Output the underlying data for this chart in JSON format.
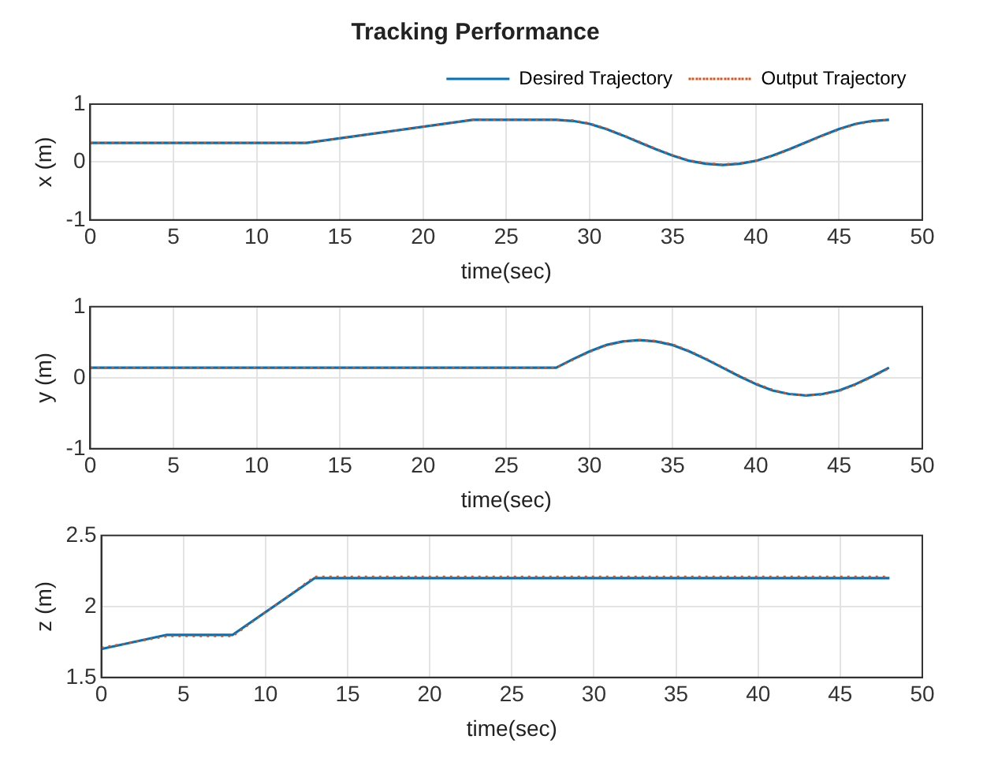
{
  "chart_data": [
    {
      "type": "line",
      "title": "Tracking Performance",
      "xlabel": "time(sec)",
      "ylabel": "x (m)",
      "xlim": [
        0,
        50
      ],
      "xticks": [
        0,
        5,
        10,
        15,
        20,
        25,
        30,
        35,
        40,
        45,
        50
      ],
      "ylim": [
        -1,
        1
      ],
      "yticks": [
        -1,
        0,
        1
      ],
      "grid": true,
      "legend": "top right",
      "marker": "none",
      "series": [
        {
          "name": "Desired Trajectory",
          "color": "#0072bd",
          "line_style": "solid",
          "x": [
            0,
            13,
            23,
            28,
            29,
            30,
            31,
            32,
            33,
            34,
            35,
            36,
            37,
            38,
            39,
            40,
            41,
            42,
            43,
            44,
            45,
            46,
            47,
            48
          ],
          "values": [
            0.33,
            0.33,
            0.73,
            0.73,
            0.71,
            0.66,
            0.57,
            0.46,
            0.34,
            0.22,
            0.11,
            0.02,
            -0.03,
            -0.05,
            -0.03,
            0.02,
            0.11,
            0.22,
            0.34,
            0.46,
            0.57,
            0.66,
            0.71,
            0.73
          ]
        },
        {
          "name": "Output Trajectory",
          "color": "#d95319",
          "line_style": "dotted",
          "x": [
            0,
            13,
            23,
            28,
            29,
            30,
            31,
            32,
            33,
            34,
            35,
            36,
            37,
            38,
            39,
            40,
            41,
            42,
            43,
            44,
            45,
            46,
            47,
            48
          ],
          "values": [
            0.33,
            0.33,
            0.73,
            0.73,
            0.72,
            0.67,
            0.58,
            0.47,
            0.35,
            0.23,
            0.12,
            0.03,
            -0.02,
            -0.04,
            -0.02,
            0.02,
            0.1,
            0.21,
            0.33,
            0.45,
            0.56,
            0.65,
            0.7,
            0.73
          ]
        }
      ]
    },
    {
      "type": "line",
      "xlabel": "time(sec)",
      "ylabel": "y (m)",
      "xlim": [
        0,
        50
      ],
      "xticks": [
        0,
        5,
        10,
        15,
        20,
        25,
        30,
        35,
        40,
        45,
        50
      ],
      "ylim": [
        -1,
        1
      ],
      "yticks": [
        -1,
        0,
        1
      ],
      "grid": true,
      "marker": "none",
      "series": [
        {
          "color": "#0072bd",
          "line_style": "solid",
          "x": [
            0,
            28,
            29,
            30,
            31,
            32,
            33,
            34,
            35,
            36,
            37,
            38,
            39,
            40,
            41,
            42,
            43,
            44,
            45,
            46,
            47,
            48
          ],
          "values": [
            0.14,
            0.14,
            0.26,
            0.37,
            0.46,
            0.51,
            0.53,
            0.51,
            0.46,
            0.37,
            0.26,
            0.14,
            0.02,
            -0.09,
            -0.18,
            -0.23,
            -0.25,
            -0.23,
            -0.18,
            -0.09,
            0.02,
            0.14
          ]
        },
        {
          "color": "#d95319",
          "line_style": "dotted",
          "x": [
            0,
            28,
            29,
            30,
            31,
            32,
            33,
            34,
            35,
            36,
            37,
            38,
            39,
            40,
            41,
            42,
            43,
            44,
            45,
            46,
            47,
            48
          ],
          "values": [
            0.14,
            0.14,
            0.25,
            0.36,
            0.45,
            0.51,
            0.53,
            0.52,
            0.47,
            0.38,
            0.27,
            0.15,
            0.03,
            -0.08,
            -0.17,
            -0.23,
            -0.25,
            -0.24,
            -0.19,
            -0.1,
            0.01,
            0.13
          ]
        }
      ]
    },
    {
      "type": "line",
      "xlabel": "time(sec)",
      "ylabel": "z (m)",
      "xlim": [
        0,
        50
      ],
      "xticks": [
        0,
        5,
        10,
        15,
        20,
        25,
        30,
        35,
        40,
        45,
        50
      ],
      "ylim": [
        1.5,
        2.5
      ],
      "yticks": [
        1.5,
        2,
        2.5
      ],
      "grid": true,
      "marker": "none",
      "series": [
        {
          "color": "#0072bd",
          "line_style": "solid",
          "x": [
            0,
            4,
            8,
            13,
            48
          ],
          "values": [
            1.7,
            1.8,
            1.8,
            2.2,
            2.2
          ]
        },
        {
          "color": "#d95319",
          "line_style": "dotted",
          "x": [
            0,
            4,
            8,
            13,
            48
          ],
          "values": [
            1.71,
            1.79,
            1.79,
            2.21,
            2.21
          ]
        }
      ]
    }
  ]
}
